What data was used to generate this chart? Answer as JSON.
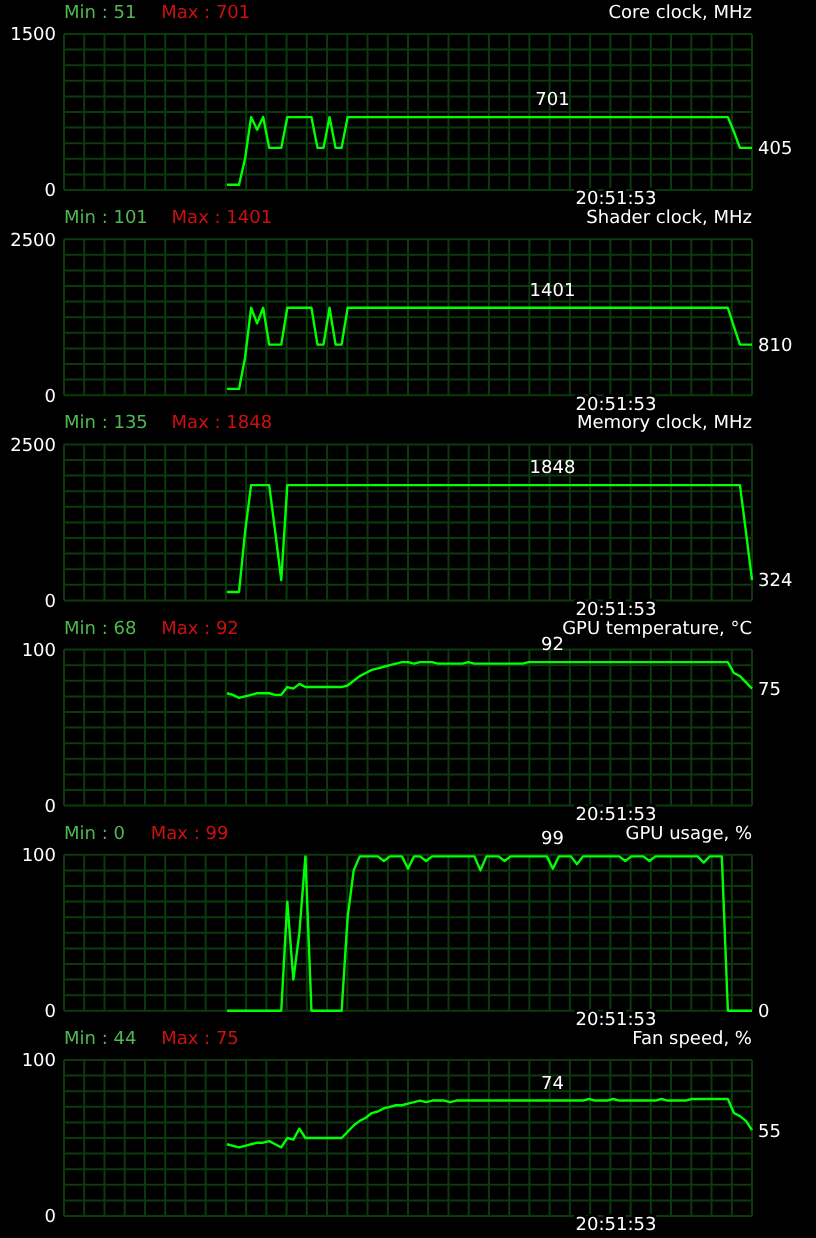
{
  "chart_data": [
    {
      "type": "line",
      "title": "Core clock, MHz",
      "categories": [
        null,
        null,
        null,
        null,
        null,
        null,
        null,
        null,
        null,
        null,
        null,
        null,
        null,
        null,
        null,
        null,
        null,
        null,
        null,
        null,
        null,
        null,
        null,
        null,
        null,
        null,
        null,
        null,
        null,
        null,
        null,
        null,
        null,
        null,
        null,
        null,
        null,
        null,
        null,
        null,
        null,
        null,
        null,
        null,
        null,
        null,
        null,
        null,
        null,
        null,
        null,
        null,
        null,
        null,
        null,
        null,
        null,
        null,
        null,
        null,
        null,
        null,
        null,
        null,
        null,
        null,
        null,
        null,
        null,
        null,
        null,
        null,
        null,
        null,
        null,
        null,
        null,
        null,
        null,
        null,
        null,
        null,
        null,
        null,
        null,
        null,
        null,
        null,
        null,
        null,
        null,
        null,
        null,
        null,
        null,
        null,
        null,
        null,
        null,
        null,
        null,
        null,
        null,
        null,
        null,
        null,
        null,
        null,
        null,
        null,
        null,
        null,
        null,
        null,
        null
      ],
      "series": [
        {
          "color": "#00ff00",
          "values": [
            null,
            null,
            null,
            null,
            null,
            null,
            null,
            null,
            null,
            null,
            null,
            null,
            null,
            null,
            null,
            null,
            null,
            null,
            null,
            null,
            null,
            null,
            null,
            null,
            null,
            null,
            null,
            51,
            51,
            51,
            300,
            701,
            580,
            701,
            405,
            405,
            405,
            701,
            701,
            701,
            701,
            701,
            405,
            405,
            701,
            405,
            405,
            701,
            701,
            701,
            701,
            701,
            701,
            701,
            701,
            701,
            701,
            701,
            701,
            701,
            701,
            701,
            701,
            701,
            701,
            701,
            701,
            701,
            701,
            701,
            701,
            701,
            701,
            701,
            701,
            701,
            701,
            701,
            701,
            701,
            701,
            701,
            701,
            701,
            701,
            701,
            701,
            701,
            701,
            701,
            701,
            701,
            701,
            701,
            701,
            701,
            701,
            701,
            701,
            701,
            701,
            701,
            701,
            701,
            701,
            701,
            701,
            701,
            701,
            701,
            701,
            560,
            405,
            405,
            405
          ]
        }
      ],
      "ylim": [
        0,
        1500
      ],
      "yticks": [
        0,
        1500
      ],
      "grid": true,
      "annotations": [
        "Min : 51",
        "Max : 701",
        "20:51:53",
        "405",
        {
          "text": "701",
          "y": 701
        }
      ]
    },
    {
      "type": "line",
      "title": "Shader clock, MHz",
      "categories": [
        null,
        null,
        null,
        null,
        null,
        null,
        null,
        null,
        null,
        null,
        null,
        null,
        null,
        null,
        null,
        null,
        null,
        null,
        null,
        null,
        null,
        null,
        null,
        null,
        null,
        null,
        null,
        null,
        null,
        null,
        null,
        null,
        null,
        null,
        null,
        null,
        null,
        null,
        null,
        null,
        null,
        null,
        null,
        null,
        null,
        null,
        null,
        null,
        null,
        null,
        null,
        null,
        null,
        null,
        null,
        null,
        null,
        null,
        null,
        null,
        null,
        null,
        null,
        null,
        null,
        null,
        null,
        null,
        null,
        null,
        null,
        null,
        null,
        null,
        null,
        null,
        null,
        null,
        null,
        null,
        null,
        null,
        null,
        null,
        null,
        null,
        null,
        null,
        null,
        null,
        null,
        null,
        null,
        null,
        null,
        null,
        null,
        null,
        null,
        null,
        null,
        null,
        null,
        null,
        null,
        null,
        null,
        null,
        null,
        null,
        null,
        null,
        null,
        null,
        null
      ],
      "series": [
        {
          "color": "#00ff00",
          "values": [
            null,
            null,
            null,
            null,
            null,
            null,
            null,
            null,
            null,
            null,
            null,
            null,
            null,
            null,
            null,
            null,
            null,
            null,
            null,
            null,
            null,
            null,
            null,
            null,
            null,
            null,
            null,
            101,
            101,
            101,
            600,
            1401,
            1150,
            1401,
            810,
            810,
            810,
            1401,
            1401,
            1401,
            1401,
            1401,
            810,
            810,
            1401,
            810,
            810,
            1401,
            1401,
            1401,
            1401,
            1401,
            1401,
            1401,
            1401,
            1401,
            1401,
            1401,
            1401,
            1401,
            1401,
            1401,
            1401,
            1401,
            1401,
            1401,
            1401,
            1401,
            1401,
            1401,
            1401,
            1401,
            1401,
            1401,
            1401,
            1401,
            1401,
            1401,
            1401,
            1401,
            1401,
            1401,
            1401,
            1401,
            1401,
            1401,
            1401,
            1401,
            1401,
            1401,
            1401,
            1401,
            1401,
            1401,
            1401,
            1401,
            1401,
            1401,
            1401,
            1401,
            1401,
            1401,
            1401,
            1401,
            1401,
            1401,
            1401,
            1401,
            1401,
            1401,
            1401,
            1100,
            810,
            810,
            810
          ]
        }
      ],
      "ylim": [
        0,
        2500
      ],
      "yticks": [
        0,
        2500
      ],
      "grid": true,
      "annotations": [
        "Min : 101",
        "Max : 1401",
        "20:51:53",
        "810",
        {
          "text": "1401",
          "y": 1401
        }
      ]
    },
    {
      "type": "line",
      "title": "Memory clock, MHz",
      "categories": [
        null,
        null,
        null,
        null,
        null,
        null,
        null,
        null,
        null,
        null,
        null,
        null,
        null,
        null,
        null,
        null,
        null,
        null,
        null,
        null,
        null,
        null,
        null,
        null,
        null,
        null,
        null,
        null,
        null,
        null,
        null,
        null,
        null,
        null,
        null,
        null,
        null,
        null,
        null,
        null,
        null,
        null,
        null,
        null,
        null,
        null,
        null,
        null,
        null,
        null,
        null,
        null,
        null,
        null,
        null,
        null,
        null,
        null,
        null,
        null,
        null,
        null,
        null,
        null,
        null,
        null,
        null,
        null,
        null,
        null,
        null,
        null,
        null,
        null,
        null,
        null,
        null,
        null,
        null,
        null,
        null,
        null,
        null,
        null,
        null,
        null,
        null,
        null,
        null,
        null,
        null,
        null,
        null,
        null,
        null,
        null,
        null,
        null,
        null,
        null,
        null,
        null,
        null,
        null,
        null,
        null,
        null,
        null,
        null,
        null,
        null,
        null,
        null,
        null,
        null
      ],
      "series": [
        {
          "color": "#00ff00",
          "values": [
            null,
            null,
            null,
            null,
            null,
            null,
            null,
            null,
            null,
            null,
            null,
            null,
            null,
            null,
            null,
            null,
            null,
            null,
            null,
            null,
            null,
            null,
            null,
            null,
            null,
            null,
            null,
            135,
            135,
            135,
            1096,
            1848,
            1848,
            1848,
            1848,
            1096,
            324,
            1848,
            1848,
            1848,
            1848,
            1848,
            1848,
            1848,
            1848,
            1848,
            1848,
            1848,
            1848,
            1848,
            1848,
            1848,
            1848,
            1848,
            1848,
            1848,
            1848,
            1848,
            1848,
            1848,
            1848,
            1848,
            1848,
            1848,
            1848,
            1848,
            1848,
            1848,
            1848,
            1848,
            1848,
            1848,
            1848,
            1848,
            1848,
            1848,
            1848,
            1848,
            1848,
            1848,
            1848,
            1848,
            1848,
            1848,
            1848,
            1848,
            1848,
            1848,
            1848,
            1848,
            1848,
            1848,
            1848,
            1848,
            1848,
            1848,
            1848,
            1848,
            1848,
            1848,
            1848,
            1848,
            1848,
            1848,
            1848,
            1848,
            1848,
            1848,
            1848,
            1848,
            1848,
            1848,
            1848,
            1096,
            324
          ]
        }
      ],
      "ylim": [
        0,
        2500
      ],
      "yticks": [
        0,
        2500
      ],
      "grid": true,
      "annotations": [
        "Min : 135",
        "Max : 1848",
        "20:51:53",
        "324",
        {
          "text": "1848",
          "y": 1848
        }
      ]
    },
    {
      "type": "line",
      "title": "GPU temperature, °C",
      "categories": [
        null,
        null,
        null,
        null,
        null,
        null,
        null,
        null,
        null,
        null,
        null,
        null,
        null,
        null,
        null,
        null,
        null,
        null,
        null,
        null,
        null,
        null,
        null,
        null,
        null,
        null,
        null,
        null,
        null,
        null,
        null,
        null,
        null,
        null,
        null,
        null,
        null,
        null,
        null,
        null,
        null,
        null,
        null,
        null,
        null,
        null,
        null,
        null,
        null,
        null,
        null,
        null,
        null,
        null,
        null,
        null,
        null,
        null,
        null,
        null,
        null,
        null,
        null,
        null,
        null,
        null,
        null,
        null,
        null,
        null,
        null,
        null,
        null,
        null,
        null,
        null,
        null,
        null,
        null,
        null,
        null,
        null,
        null,
        null,
        null,
        null,
        null,
        null,
        null,
        null,
        null,
        null,
        null,
        null,
        null,
        null,
        null,
        null,
        null,
        null,
        null,
        null,
        null,
        null,
        null,
        null,
        null,
        null,
        null,
        null,
        null,
        null,
        null,
        null,
        null
      ],
      "series": [
        {
          "color": "#00ff00",
          "values": [
            null,
            null,
            null,
            null,
            null,
            null,
            null,
            null,
            null,
            null,
            null,
            null,
            null,
            null,
            null,
            null,
            null,
            null,
            null,
            null,
            null,
            null,
            null,
            null,
            null,
            null,
            null,
            72,
            71,
            69,
            70,
            71,
            72,
            72,
            72,
            71,
            71,
            76,
            75,
            78,
            76,
            76,
            76,
            76,
            76,
            76,
            76,
            77,
            80,
            83,
            85,
            87,
            88,
            89,
            90,
            91,
            92,
            92,
            91,
            92,
            92,
            92,
            91,
            91,
            91,
            91,
            91,
            92,
            91,
            91,
            91,
            91,
            91,
            91,
            91,
            91,
            91,
            92,
            92,
            92,
            92,
            92,
            92,
            92,
            92,
            92,
            92,
            92,
            92,
            92,
            92,
            92,
            92,
            92,
            92,
            92,
            92,
            92,
            92,
            92,
            92,
            92,
            92,
            92,
            92,
            92,
            92,
            92,
            92,
            92,
            92,
            85,
            83,
            79,
            75
          ]
        }
      ],
      "ylim": [
        0,
        100
      ],
      "yticks": [
        0,
        100
      ],
      "grid": true,
      "annotations": [
        "Min : 68",
        "Max : 92",
        "20:51:53",
        "75",
        {
          "text": "92",
          "y": 92
        }
      ]
    },
    {
      "type": "line",
      "title": "GPU usage, %",
      "categories": [
        null,
        null,
        null,
        null,
        null,
        null,
        null,
        null,
        null,
        null,
        null,
        null,
        null,
        null,
        null,
        null,
        null,
        null,
        null,
        null,
        null,
        null,
        null,
        null,
        null,
        null,
        null,
        null,
        null,
        null,
        null,
        null,
        null,
        null,
        null,
        null,
        null,
        null,
        null,
        null,
        null,
        null,
        null,
        null,
        null,
        null,
        null,
        null,
        null,
        null,
        null,
        null,
        null,
        null,
        null,
        null,
        null,
        null,
        null,
        null,
        null,
        null,
        null,
        null,
        null,
        null,
        null,
        null,
        null,
        null,
        null,
        null,
        null,
        null,
        null,
        null,
        null,
        null,
        null,
        null,
        null,
        null,
        null,
        null,
        null,
        null,
        null,
        null,
        null,
        null,
        null,
        null,
        null,
        null,
        null,
        null,
        null,
        null,
        null,
        null,
        null,
        null,
        null,
        null,
        null,
        null,
        null,
        null,
        null,
        null,
        null,
        null,
        null,
        null,
        null
      ],
      "series": [
        {
          "color": "#00ff00",
          "values": [
            null,
            null,
            null,
            null,
            null,
            null,
            null,
            null,
            null,
            null,
            null,
            null,
            null,
            null,
            null,
            null,
            null,
            null,
            null,
            null,
            null,
            null,
            null,
            null,
            null,
            null,
            null,
            0,
            0,
            0,
            0,
            0,
            0,
            0,
            0,
            0,
            0,
            70,
            20,
            50,
            99,
            0,
            0,
            0,
            0,
            0,
            0,
            60,
            90,
            99,
            99,
            99,
            99,
            96,
            99,
            99,
            99,
            91,
            99,
            99,
            96,
            99,
            99,
            99,
            99,
            99,
            99,
            99,
            99,
            90,
            99,
            99,
            99,
            96,
            99,
            99,
            99,
            99,
            99,
            99,
            99,
            91,
            99,
            99,
            99,
            94,
            99,
            99,
            99,
            99,
            99,
            99,
            99,
            96,
            99,
            99,
            99,
            96,
            99,
            99,
            99,
            99,
            99,
            99,
            99,
            99,
            95,
            99,
            99,
            99,
            0,
            0,
            0,
            0,
            0
          ]
        }
      ],
      "ylim": [
        0,
        100
      ],
      "yticks": [
        0,
        100
      ],
      "grid": true,
      "annotations": [
        "Min : 0",
        "Max : 99",
        "20:51:53",
        "0",
        {
          "text": "99",
          "y": 99
        }
      ]
    },
    {
      "type": "line",
      "title": "Fan speed, %",
      "categories": [
        null,
        null,
        null,
        null,
        null,
        null,
        null,
        null,
        null,
        null,
        null,
        null,
        null,
        null,
        null,
        null,
        null,
        null,
        null,
        null,
        null,
        null,
        null,
        null,
        null,
        null,
        null,
        null,
        null,
        null,
        null,
        null,
        null,
        null,
        null,
        null,
        null,
        null,
        null,
        null,
        null,
        null,
        null,
        null,
        null,
        null,
        null,
        null,
        null,
        null,
        null,
        null,
        null,
        null,
        null,
        null,
        null,
        null,
        null,
        null,
        null,
        null,
        null,
        null,
        null,
        null,
        null,
        null,
        null,
        null,
        null,
        null,
        null,
        null,
        null,
        null,
        null,
        null,
        null,
        null,
        null,
        null,
        null,
        null,
        null,
        null,
        null,
        null,
        null,
        null,
        null,
        null,
        null,
        null,
        null,
        null,
        null,
        null,
        null,
        null,
        null,
        null,
        null,
        null,
        null,
        null,
        null,
        null,
        null,
        null,
        null,
        null,
        null,
        null,
        null
      ],
      "series": [
        {
          "color": "#00ff00",
          "values": [
            null,
            null,
            null,
            null,
            null,
            null,
            null,
            null,
            null,
            null,
            null,
            null,
            null,
            null,
            null,
            null,
            null,
            null,
            null,
            null,
            null,
            null,
            null,
            null,
            null,
            null,
            null,
            46,
            45,
            44,
            45,
            46,
            47,
            47,
            48,
            46,
            44,
            50,
            49,
            56,
            50,
            50,
            50,
            50,
            50,
            50,
            50,
            54,
            58,
            61,
            63,
            66,
            67,
            69,
            70,
            71,
            71,
            72,
            73,
            74,
            73,
            74,
            74,
            74,
            73,
            74,
            74,
            74,
            74,
            74,
            74,
            74,
            74,
            74,
            74,
            74,
            74,
            74,
            74,
            74,
            74,
            74,
            74,
            74,
            74,
            74,
            74,
            75,
            74,
            74,
            74,
            75,
            74,
            74,
            74,
            74,
            74,
            74,
            74,
            75,
            74,
            74,
            74,
            74,
            75,
            75,
            75,
            75,
            75,
            75,
            75,
            66,
            64,
            61,
            55
          ]
        }
      ],
      "ylim": [
        0,
        100
      ],
      "yticks": [
        0,
        100
      ],
      "grid": true,
      "annotations": [
        "Min : 44",
        "Max : 75",
        "20:51:53",
        "55",
        {
          "text": "74",
          "y": 74
        }
      ]
    }
  ]
}
